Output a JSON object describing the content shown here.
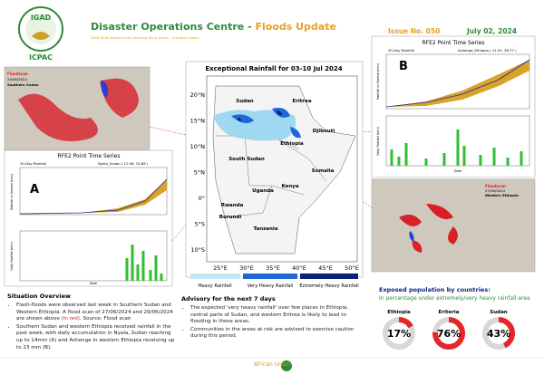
{
  "header": {
    "logo_text": "IGAD",
    "logo_sub": "ICPAC",
    "title": "Disaster Operations Centre - ",
    "title_accent": "Floods Update",
    "subtitle": "IGAD Multi-Hazard Early Warning Early Action - Situation Room",
    "issue": "Issue No. 050",
    "date": "July 02, 2024"
  },
  "left_image": {
    "label": "Floodscan",
    "date": "29/06/2024",
    "place": "Southern Sudan"
  },
  "right_image": {
    "label": "Floodscan",
    "date": "27/06/2024",
    "place": "Western Ethiopia"
  },
  "chart_a": {
    "title": "RFE2 Point Time Series",
    "panel": "30-Day Rainfall",
    "station": "Nyala_Sudan ( 12.06, 24.89 )",
    "letter": "A",
    "y1": "Rainfall vs Normal (mm)",
    "y2": "Daily Rainfall (mm)",
    "x": "Date"
  },
  "chart_b": {
    "title": "RFE2 Point Time Series",
    "panel": "30-Day Rainfall",
    "station": "Ashenge_Ethiopia ( 11.03, 38.77 )",
    "letter": "B",
    "y1": "Rainfall vs Normal (mm)",
    "y2": "Daily Rainfall (mm)",
    "x": "Date"
  },
  "map": {
    "title": "Exceptional Rainfall for 03-10 Jul 2024",
    "lat_labels": [
      "20°N",
      "15°N",
      "10°N",
      "5°N",
      "0°",
      "5°S",
      "10°S"
    ],
    "lon_labels": [
      "25°E",
      "30°E",
      "35°E",
      "40°E",
      "45°E",
      "50°E"
    ],
    "countries": [
      "Sudan",
      "Eritrea",
      "Djibouti",
      "Ethiopia",
      "South Sudan",
      "Somalia",
      "Kenya",
      "Uganda",
      "Rwanda",
      "Burundi",
      "Tanzania"
    ],
    "legend": [
      "Heavy Rainfall",
      "Very Heavy Rainfall",
      "Extremely Heavy Rainfall"
    ]
  },
  "situation": {
    "title": "Situation Overview",
    "bullet1": "Flash-floods were observed last week in Southern Sudan and Western Ethiopia. A flood scan of 27/06/2024 and 29/06/2024 are shown above ",
    "bullet1_red": "(in red)",
    "bullet1_tail": ". Source: Flood scan",
    "bullet2": "Southern Sudan and western Ethiopia received rainfall in the past week, with daily accumulation in Nyala, Sudan reaching up to 14mm (A) and Ashenge in western Ethiopia receiving up to 23 mm (B)."
  },
  "advisory": {
    "title": "Advisory for the next 7 days",
    "bullets": [
      "The expected 'very heavy rainfall' over few places in Ethiopia, central parts of Sudan, and western Eritrea is likely to lead to flooding in these areas.",
      "Communities in the areas at risk are advised to exercise caution during this period."
    ]
  },
  "exposure": {
    "title": "Exposed population by countries:",
    "subtitle": "In percentage under extremely/very heavy rainfall area",
    "countries": [
      {
        "name": "Ethiopia",
        "value": 17,
        "label": "17%"
      },
      {
        "name": "Eriteria",
        "value": 76,
        "label": "76%"
      },
      {
        "name": "Sudan",
        "value": 43,
        "label": "43%"
      }
    ]
  },
  "footer": {
    "logo": "African Union"
  }
}
